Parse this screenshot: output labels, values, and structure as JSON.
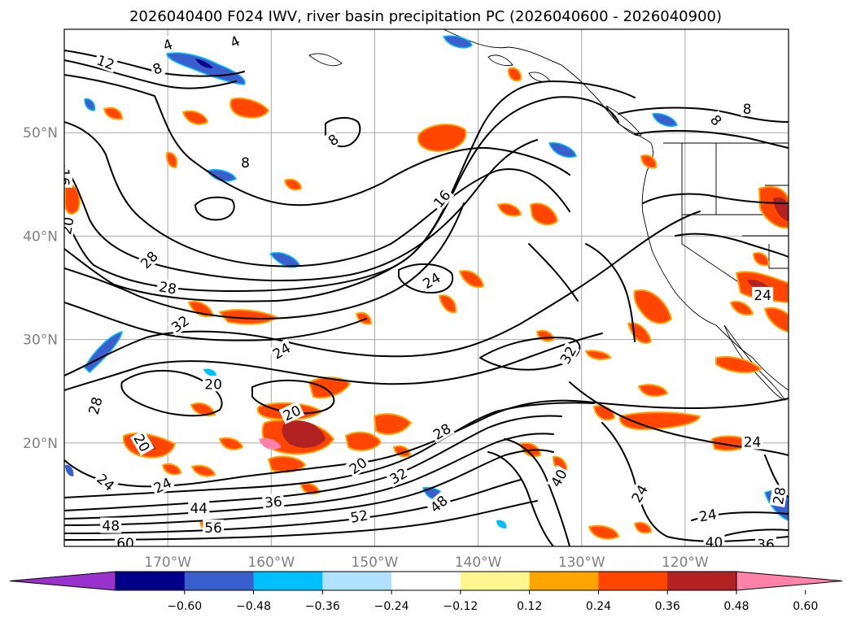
{
  "title": "2026040400 F024 IWV, river basin precipitation PC (2026040600 - 2026040900)",
  "map": {
    "lon_range": [
      -180,
      -110
    ],
    "lat_range": [
      10,
      60
    ],
    "lat_ticks": [
      {
        "lat": 50,
        "label": "50°N"
      },
      {
        "lat": 40,
        "label": "40°N"
      },
      {
        "lat": 30,
        "label": "30°N"
      },
      {
        "lat": 20,
        "label": "20°N"
      }
    ],
    "lon_ticks": [
      {
        "lon": -170,
        "label": "170°W"
      },
      {
        "lon": -160,
        "label": "160°W"
      },
      {
        "lon": -150,
        "label": "150°W"
      },
      {
        "lon": -140,
        "label": "140°W"
      },
      {
        "lon": -130,
        "label": "130°W"
      },
      {
        "lon": -120,
        "label": "120°W"
      }
    ],
    "contour_labels": [
      {
        "text": "4",
        "lon": -170,
        "lat": 58.5,
        "rot": -20
      },
      {
        "text": "4",
        "lon": -163.5,
        "lat": 58.8,
        "rot": -25
      },
      {
        "text": "12",
        "lon": -176,
        "lat": 56.8,
        "rot": 20
      },
      {
        "text": "8",
        "lon": -171,
        "lat": 56.2,
        "rot": -20
      },
      {
        "text": "8",
        "lon": -162.5,
        "lat": 47.1,
        "rot": 0
      },
      {
        "text": "8",
        "lon": -154,
        "lat": 49.3,
        "rot": -35
      },
      {
        "text": "8",
        "lon": -117,
        "lat": 51.2,
        "rot": 50
      },
      {
        "text": "8",
        "lon": -114,
        "lat": 52.3,
        "rot": 0
      },
      {
        "text": "16",
        "lon": -180,
        "lat": 45.7,
        "rot": 90
      },
      {
        "text": "16",
        "lon": -143.5,
        "lat": 43.6,
        "rot": -50
      },
      {
        "text": "20",
        "lon": -179.7,
        "lat": 41.0,
        "rot": -80
      },
      {
        "text": "24",
        "lon": -144.5,
        "lat": 35.7,
        "rot": -30
      },
      {
        "text": "28",
        "lon": -171.8,
        "lat": 37.7,
        "rot": -45
      },
      {
        "text": "28",
        "lon": -170,
        "lat": 35.0,
        "rot": 10
      },
      {
        "text": "32",
        "lon": -168.8,
        "lat": 31.5,
        "rot": -35
      },
      {
        "text": "24",
        "lon": -159,
        "lat": 28.9,
        "rot": -30
      },
      {
        "text": "32",
        "lon": -131.3,
        "lat": 28.5,
        "rot": -60
      },
      {
        "text": "20",
        "lon": -165.6,
        "lat": 25.7,
        "rot": 0
      },
      {
        "text": "20",
        "lon": -158,
        "lat": 22.9,
        "rot": -25
      },
      {
        "text": "28",
        "lon": -177,
        "lat": 23.6,
        "rot": -75
      },
      {
        "text": "20",
        "lon": -172.5,
        "lat": 20.0,
        "rot": 60
      },
      {
        "text": "28",
        "lon": -143.5,
        "lat": 21.1,
        "rot": -30
      },
      {
        "text": "20",
        "lon": -151.6,
        "lat": 17.8,
        "rot": -35
      },
      {
        "text": "32",
        "lon": -147.7,
        "lat": 16.8,
        "rot": -30
      },
      {
        "text": "40",
        "lon": -132.2,
        "lat": 16.6,
        "rot": -60
      },
      {
        "text": "24",
        "lon": -176,
        "lat": 16.2,
        "rot": 40
      },
      {
        "text": "24",
        "lon": -170.5,
        "lat": 15.9,
        "rot": -25
      },
      {
        "text": "24",
        "lon": -124.4,
        "lat": 15.1,
        "rot": -60
      },
      {
        "text": "36",
        "lon": -159.8,
        "lat": 14.3,
        "rot": -5
      },
      {
        "text": "52",
        "lon": -151.5,
        "lat": 12.9,
        "rot": -10
      },
      {
        "text": "48",
        "lon": -143.8,
        "lat": 14.1,
        "rot": -40
      },
      {
        "text": "44",
        "lon": -167,
        "lat": 13.7,
        "rot": 0
      },
      {
        "text": "48",
        "lon": -175.5,
        "lat": 12.0,
        "rot": 0
      },
      {
        "text": "56",
        "lon": -165.6,
        "lat": 11.8,
        "rot": 0
      },
      {
        "text": "60",
        "lon": -174.1,
        "lat": 10.3,
        "rot": 0
      },
      {
        "text": "24",
        "lon": -117.8,
        "lat": 13.0,
        "rot": -10
      },
      {
        "text": "24",
        "lon": -113.5,
        "lat": 20.1,
        "rot": 0
      },
      {
        "text": "28",
        "lon": -110.9,
        "lat": 14.9,
        "rot": -80
      },
      {
        "text": "40",
        "lon": -117.2,
        "lat": 10.4,
        "rot": 0
      },
      {
        "text": "36",
        "lon": -112.2,
        "lat": 10.2,
        "rot": 0
      },
      {
        "text": "24",
        "lon": -112.5,
        "lat": 34.3,
        "rot": 0
      }
    ]
  },
  "colorbar": {
    "colors": [
      "#9932cc",
      "#00008b",
      "#3a5fcd",
      "#00bfff",
      "#b0e2ff",
      "#ffffff",
      "#fff68f",
      "#ffa500",
      "#ff4500",
      "#b22222",
      "#ff82ab"
    ],
    "tick_labels": [
      "−0.60",
      "−0.48",
      "−0.36",
      "−0.24",
      "−0.12",
      "0.12",
      "0.24",
      "0.36",
      "0.48",
      "0.60"
    ]
  }
}
